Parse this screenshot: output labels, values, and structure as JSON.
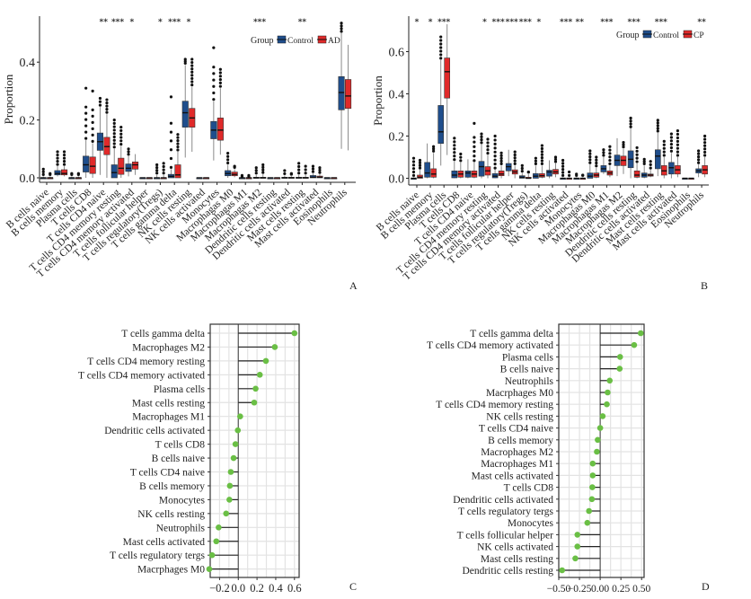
{
  "chart_data": [
    {
      "panel": "A",
      "type": "boxplot",
      "ylabel": "Proportion",
      "ylim": [
        0,
        0.55
      ],
      "yticks": [
        "0.0",
        "0.2",
        "0.4"
      ],
      "legend": {
        "title": "Group",
        "entries": [
          "Control",
          "AD"
        ],
        "colors": [
          "#1f4e8c",
          "#e02a2a"
        ],
        "position": "top-right"
      },
      "categories": [
        "B cells naive",
        "B cells memory",
        "Plasma cells",
        "T cells CD8",
        "T cells CD4 naive",
        "T cells CD4 memory resting",
        "T cells CD4 memory activated",
        "T cells follicular helper",
        "T cells regulatory(Tregs)",
        "T cells gamma delta",
        "NK cells resting",
        "NK cells activated",
        "Monocytes",
        "Macrophagas M0",
        "Macrophagas M1",
        "Macrophagas M2",
        "Dendritic cells resting",
        "Dendritic cells activated",
        "Mast cells resting",
        "Mast cells activated",
        "Eosinophils",
        "Neutrophils"
      ],
      "significance": [
        "",
        "",
        "",
        "",
        "**",
        "***",
        "*",
        "",
        "*",
        "***",
        "*",
        "",
        "",
        "",
        "",
        "***",
        "",
        "",
        "**",
        "",
        "",
        ""
      ],
      "series": [
        {
          "name": "Control",
          "boxes": [
            [
              0,
              0,
              0,
              0,
              0.005
            ],
            [
              0.005,
              0.01,
              0.015,
              0.025,
              0.04
            ],
            [
              0,
              0,
              0,
              0,
              0.005
            ],
            [
              0,
              0.02,
              0.045,
              0.075,
              0.13
            ],
            [
              0.01,
              0.095,
              0.125,
              0.155,
              0.245
            ],
            [
              0,
              0,
              0.018,
              0.045,
              0.1
            ],
            [
              0.005,
              0.022,
              0.033,
              0.048,
              0.075
            ],
            [
              0,
              0,
              0,
              0,
              0
            ],
            [
              0,
              0,
              0,
              0,
              0.01
            ],
            [
              0,
              0,
              0.005,
              0.012,
              0.03
            ],
            [
              0.07,
              0.175,
              0.225,
              0.265,
              0.39
            ],
            [
              0,
              0,
              0,
              0,
              0
            ],
            [
              0.06,
              0.135,
              0.165,
              0.195,
              0.265
            ],
            [
              0,
              0.007,
              0.015,
              0.025,
              0.045
            ],
            [
              0,
              0,
              0,
              0,
              0.002
            ],
            [
              0,
              0,
              0,
              0.002,
              0.01
            ],
            [
              0,
              0,
              0,
              0,
              0
            ],
            [
              0,
              0,
              0,
              0.002,
              0.008
            ],
            [
              0,
              0,
              0,
              0.002,
              0.01
            ],
            [
              0,
              0,
              0.002,
              0.008,
              0.015
            ],
            [
              0,
              0,
              0,
              0,
              0
            ],
            [
              0.1,
              0.235,
              0.295,
              0.35,
              0.5
            ]
          ],
          "outliers_max": [
            0.03,
            0.09,
            0.015,
            0.31,
            0.275,
            0.2,
            0.1,
            0,
            0.045,
            0.28,
            0.41,
            0,
            0.45,
            0.085,
            0.005,
            0.035,
            0,
            0.025,
            0.05,
            0.04,
            0,
            0.535
          ]
        },
        {
          "name": "AD",
          "boxes": [
            [
              0,
              0,
              0,
              0,
              0.005
            ],
            [
              0.005,
              0.01,
              0.015,
              0.028,
              0.04
            ],
            [
              0,
              0,
              0,
              0,
              0.005
            ],
            [
              0,
              0.015,
              0.04,
              0.072,
              0.12
            ],
            [
              0,
              0.08,
              0.108,
              0.14,
              0.22
            ],
            [
              0,
              0.012,
              0.033,
              0.068,
              0.11
            ],
            [
              0.01,
              0.03,
              0.045,
              0.055,
              0.082
            ],
            [
              0,
              0,
              0,
              0,
              0
            ],
            [
              0,
              0,
              0,
              0,
              0.01
            ],
            [
              0,
              0,
              0.01,
              0.045,
              0.09
            ],
            [
              0.09,
              0.175,
              0.207,
              0.24,
              0.315
            ],
            [
              0,
              0,
              0,
              0,
              0
            ],
            [
              0.08,
              0.13,
              0.165,
              0.207,
              0.31
            ],
            [
              0.002,
              0.007,
              0.012,
              0.02,
              0.03
            ],
            [
              0,
              0,
              0,
              0,
              0.002
            ],
            [
              0,
              0,
              0,
              0.002,
              0.012
            ],
            [
              0,
              0,
              0,
              0,
              0
            ],
            [
              0,
              0,
              0,
              0.002,
              0.006
            ],
            [
              0,
              0,
              0,
              0.002,
              0.01
            ],
            [
              0,
              0,
              0.002,
              0.006,
              0.012
            ],
            [
              0,
              0,
              0,
              0,
              0
            ],
            [
              0.095,
              0.24,
              0.283,
              0.34,
              0.46
            ]
          ],
          "outliers_max": [
            0.015,
            0.09,
            0.015,
            0.3,
            0.27,
            0.175,
            0.08,
            0,
            0.05,
            0.15,
            0.41,
            0,
            0.375,
            0.04,
            0.005,
            0.045,
            0,
            0.015,
            0.04,
            0.035,
            0,
            0
          ]
        }
      ],
      "panel_label": "A"
    },
    {
      "panel": "B",
      "type": "boxplot",
      "ylabel": "Proportion",
      "ylim": [
        0,
        0.75
      ],
      "yticks": [
        "0.0",
        "0.2",
        "0.4",
        "0.6"
      ],
      "legend": {
        "title": "Group",
        "entries": [
          "Control",
          "CP"
        ],
        "colors": [
          "#1f4e8c",
          "#e02a2a"
        ],
        "position": "top-right"
      },
      "categories": [
        "B cells naive",
        "B cells memory",
        "Plasma cells",
        "T cells CD8",
        "T cells CD4 naive",
        "T cells CD4 memory resting",
        "T cells CD4 memory activated",
        "T cells follicular helper",
        "T cells regulatory(Tregs)",
        "T cells gamma delta",
        "NK cells resting",
        "NK cells activated",
        "Monocytes",
        "Macrophagas M0",
        "Macrophagas M1",
        "Macrophagas M2",
        "Dendritic cells resting",
        "Dendritic cells activated",
        "Mast cells resting",
        "Mast cells activated",
        "Eosinophils",
        "Neutrophils"
      ],
      "significance": [
        "*",
        "*",
        "***",
        "",
        "",
        "*",
        "***",
        "***",
        "***",
        "*",
        "",
        "***",
        "**",
        "",
        "***",
        "",
        "***",
        "",
        "***",
        "",
        "",
        "**"
      ],
      "series": [
        {
          "name": "Control",
          "boxes": [
            [
              0,
              0,
              0,
              0,
              0.005
            ],
            [
              0,
              0.005,
              0.025,
              0.075,
              0.165
            ],
            [
              0.06,
              0.165,
              0.22,
              0.345,
              0.56
            ],
            [
              0,
              0.002,
              0.015,
              0.035,
              0.08
            ],
            [
              0,
              0.005,
              0.025,
              0.035,
              0.09
            ],
            [
              0,
              0.01,
              0.055,
              0.08,
              0.16
            ],
            [
              0,
              0.002,
              0.01,
              0.022,
              0.04
            ],
            [
              0.01,
              0.035,
              0.055,
              0.07,
              0.135
            ],
            [
              0,
              0,
              0.005,
              0.012,
              0.025
            ],
            [
              0,
              0,
              0.01,
              0.022,
              0.06
            ],
            [
              0,
              0.01,
              0.03,
              0.038,
              0.085
            ],
            [
              0,
              0,
              0,
              0,
              0.005
            ],
            [
              0,
              0,
              0,
              0,
              0.005
            ],
            [
              0,
              0,
              0.01,
              0.025,
              0.065
            ],
            [
              0.02,
              0.03,
              0.045,
              0.06,
              0.1
            ],
            [
              0.01,
              0.06,
              0.085,
              0.11,
              0.19
            ],
            [
              0,
              0.05,
              0.09,
              0.13,
              0.235
            ],
            [
              0,
              0.005,
              0.015,
              0.025,
              0.06
            ],
            [
              0.01,
              0.045,
              0.105,
              0.135,
              0.215
            ],
            [
              0,
              0.02,
              0.05,
              0.075,
              0.12
            ],
            [
              0,
              0,
              0,
              0,
              0
            ],
            [
              0.005,
              0.025,
              0.035,
              0.045,
              0.065
            ]
          ],
          "outliers_max": [
            0.095,
            0,
            0.67,
            0.19,
            0,
            0.21,
            0.2,
            0,
            0.06,
            0.095,
            0,
            0.085,
            0.02,
            0.13,
            0.135,
            0,
            0.285,
            0.09,
            0.275,
            0.21,
            0,
            0.13
          ]
        },
        {
          "name": "CP",
          "boxes": [
            [
              0,
              0,
              0.005,
              0.015,
              0.04
            ],
            [
              0,
              0.005,
              0.02,
              0.045,
              0.12
            ],
            [
              0.11,
              0.38,
              0.505,
              0.57,
              0.73
            ],
            [
              0,
              0.005,
              0.02,
              0.035,
              0.075
            ],
            [
              0,
              0.005,
              0.02,
              0.035,
              0.075
            ],
            [
              0,
              0.015,
              0.035,
              0.055,
              0.11
            ],
            [
              0,
              0.012,
              0.02,
              0.035,
              0.06
            ],
            [
              0,
              0.02,
              0.03,
              0.04,
              0.06
            ],
            [
              0,
              0,
              0,
              0.005,
              0.02
            ],
            [
              0,
              0.005,
              0.012,
              0.022,
              0.06
            ],
            [
              0.005,
              0.02,
              0.03,
              0.042,
              0.07
            ],
            [
              0,
              0,
              0,
              0,
              0.005
            ],
            [
              0,
              0,
              0,
              0,
              0.005
            ],
            [
              0,
              0.005,
              0.015,
              0.025,
              0.05
            ],
            [
              0.005,
              0.015,
              0.025,
              0.035,
              0.06
            ],
            [
              0.02,
              0.06,
              0.085,
              0.105,
              0.14
            ],
            [
              0,
              0.005,
              0.015,
              0.035,
              0.07
            ],
            [
              0.005,
              0.01,
              0.015,
              0.02,
              0.04
            ],
            [
              0,
              0.015,
              0.035,
              0.06,
              0.1
            ],
            [
              0.005,
              0.02,
              0.04,
              0.06,
              0.1
            ],
            [
              0,
              0,
              0,
              0,
              0
            ],
            [
              0.005,
              0.02,
              0.04,
              0.06,
              0.1
            ]
          ],
          "outliers_max": [
            0.085,
            0.15,
            0.085,
            0.115,
            0.26,
            0.185,
            0.12,
            0.125,
            0.03,
            0.155,
            0.1,
            0.03,
            0.015,
            0.1,
            0.15,
            0.17,
            0.145,
            0.08,
            0.175,
            0.225,
            0,
            0.2
          ]
        }
      ],
      "panel_label": "B"
    },
    {
      "panel": "C",
      "type": "lollipop",
      "xlim": [
        -0.3,
        0.65
      ],
      "xticks": [
        -0.2,
        0.0,
        0.2,
        0.4,
        0.6
      ],
      "xtick_labels": [
        "−0.2",
        "0.0",
        "0.2",
        "0.4",
        "0.6"
      ],
      "categories": [
        "T cells gamma delta",
        "Macrophages M2",
        "T cells CD4 memory resting",
        "T cells CD4 memory activated",
        "Plasma cells",
        "Mast cells resting",
        "Macrophages M1",
        "Dendritic cells activated",
        "T cells CD8",
        "B cells naive",
        "T cells CD4 naive",
        "B cells memory",
        "Monocytes",
        "NK cells resting",
        "Neutrophils",
        "Mast cells activated",
        "T cells regulatory tergs",
        "Macrphages M0"
      ],
      "values": [
        0.6,
        0.39,
        0.295,
        0.23,
        0.185,
        0.17,
        0.02,
        -0.005,
        -0.03,
        -0.05,
        -0.08,
        -0.09,
        -0.095,
        -0.13,
        -0.21,
        -0.235,
        -0.28,
        -0.31
      ],
      "color": "#6abf45",
      "panel_label": "C"
    },
    {
      "panel": "D",
      "type": "lollipop",
      "xlim": [
        -0.5,
        0.53
      ],
      "xticks": [
        -0.5,
        -0.25,
        0.0,
        0.25,
        0.5
      ],
      "xtick_labels": [
        "−0.50",
        "−0.25",
        "0.00",
        "0.25",
        "0.50"
      ],
      "categories": [
        "T cells gamma delta",
        "T cells CD4 memory activated",
        "Plasma cells",
        "B cells naive",
        "Neutrophils",
        "Macrphages M0",
        "T cells CD4 memory resting",
        "NK cells resting",
        "T cells CD4 naive",
        "B cells memory",
        "Macrophages M2",
        "Macrophages M1",
        "Mast cells activated",
        "T cells CD8",
        "Dendritic cells activated",
        "T cells regulatory tergs",
        "Monocytes",
        "T cells follicular helper",
        "NK cells activated",
        "Mast cells resting",
        "Dendritic cells resting"
      ],
      "values": [
        0.49,
        0.41,
        0.24,
        0.235,
        0.115,
        0.09,
        0.08,
        0.03,
        0.0,
        -0.03,
        -0.04,
        -0.09,
        -0.09,
        -0.095,
        -0.1,
        -0.135,
        -0.155,
        -0.275,
        -0.275,
        -0.3,
        -0.46
      ],
      "color": "#6abf45",
      "panel_label": "D"
    }
  ]
}
